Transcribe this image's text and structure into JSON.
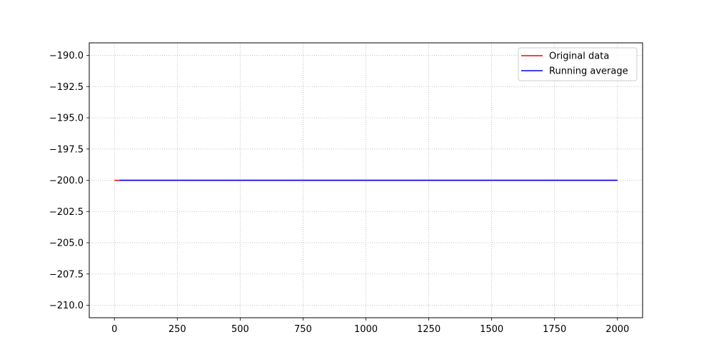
{
  "chart_data": {
    "type": "line",
    "title": "",
    "xlabel": "",
    "ylabel": "",
    "xlim": [
      -100,
      2100
    ],
    "ylim": [
      -211,
      -189
    ],
    "grid": true,
    "legend_position": "top-right",
    "x_ticks": [
      0,
      250,
      500,
      750,
      1000,
      1250,
      1500,
      1750,
      2000
    ],
    "y_ticks": [
      -190.0,
      -192.5,
      -195.0,
      -197.5,
      -200.0,
      -202.5,
      -205.0,
      -207.5,
      -210.0
    ],
    "series": [
      {
        "name": "Original data",
        "color": "#ff0000",
        "x": [
          0,
          2000
        ],
        "y": [
          -200.0,
          -200.0
        ]
      },
      {
        "name": "Running average",
        "color": "#0000ff",
        "x": [
          20,
          2000
        ],
        "y": [
          -200.0,
          -200.0
        ]
      }
    ]
  }
}
